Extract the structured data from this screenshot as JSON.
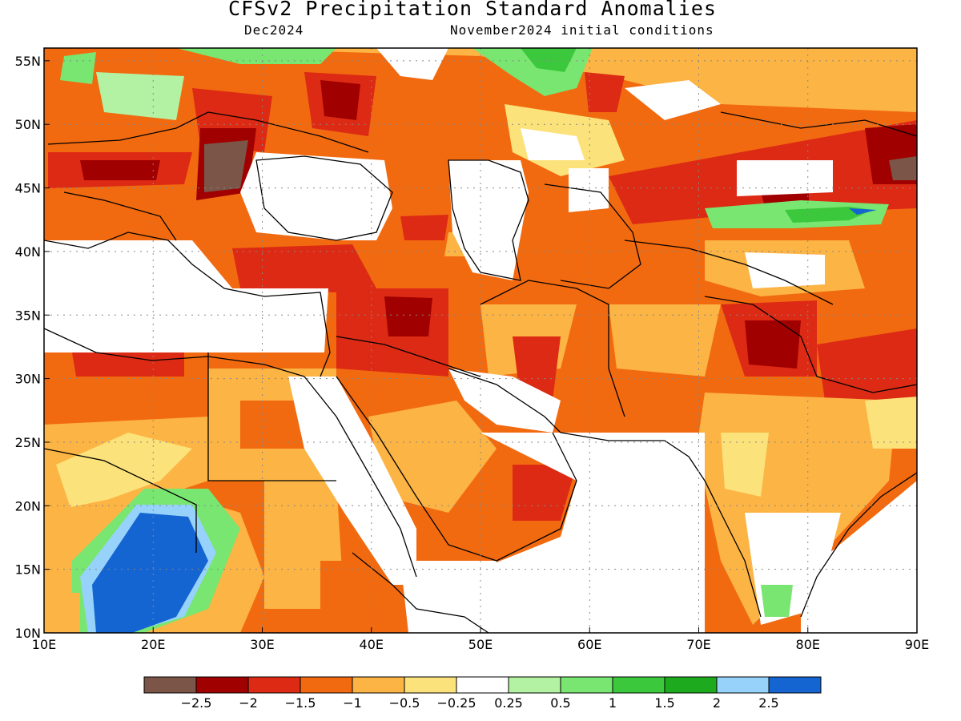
{
  "header": {
    "title": "CFSv2 Precipitation Standard Anomalies",
    "target_month": "Dec2024",
    "initial_conditions": "November2024 initial conditions"
  },
  "map": {
    "lon_range": [
      10,
      90
    ],
    "lat_range": [
      10,
      56
    ],
    "lon_ticks": [
      {
        "value": 10,
        "label": "10E"
      },
      {
        "value": 20,
        "label": "20E"
      },
      {
        "value": 30,
        "label": "30E"
      },
      {
        "value": 40,
        "label": "40E"
      },
      {
        "value": 50,
        "label": "50E"
      },
      {
        "value": 60,
        "label": "60E"
      },
      {
        "value": 70,
        "label": "70E"
      },
      {
        "value": 80,
        "label": "80E"
      },
      {
        "value": 90,
        "label": "90E"
      }
    ],
    "lat_ticks": [
      {
        "value": 10,
        "label": "10N"
      },
      {
        "value": 15,
        "label": "15N"
      },
      {
        "value": 20,
        "label": "20N"
      },
      {
        "value": 25,
        "label": "25N"
      },
      {
        "value": 30,
        "label": "30N"
      },
      {
        "value": 35,
        "label": "35N"
      },
      {
        "value": 40,
        "label": "40N"
      },
      {
        "value": 45,
        "label": "45N"
      },
      {
        "value": 50,
        "label": "50N"
      },
      {
        "value": 55,
        "label": "55N"
      }
    ],
    "gridlines": "dotted"
  },
  "legend": {
    "colors": [
      "#7a5548",
      "#a00000",
      "#dc2a14",
      "#f26a10",
      "#fcb444",
      "#fce27a",
      "#ffffff",
      "#b2f2a2",
      "#78e670",
      "#3cc83c",
      "#1eaa1e",
      "#96d2fa",
      "#1464d2"
    ],
    "labels": [
      "−2.5",
      "−2",
      "−1.5",
      "−1",
      "−0.5",
      "−0.25",
      "0.25",
      "0.5",
      "1",
      "1.5",
      "2",
      "2.5"
    ]
  }
}
